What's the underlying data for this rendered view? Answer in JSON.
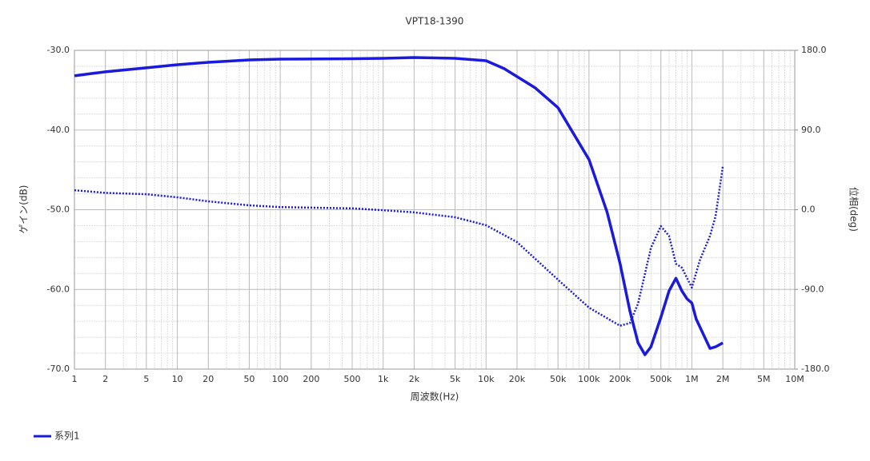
{
  "chart_data": {
    "type": "line",
    "title": "VPT18-1390",
    "xlabel": "周波数(Hz)",
    "ylabel": "ゲイン(dB)",
    "y2label": "位相(deg)",
    "xscale": "log",
    "xlim": [
      1,
      10000000
    ],
    "xticks": [
      1,
      2,
      5,
      10,
      20,
      50,
      100,
      200,
      500,
      {
        "value": 1000,
        "label": "1k"
      },
      {
        "value": 2000,
        "label": "2k"
      },
      {
        "value": 5000,
        "label": "5k"
      },
      {
        "value": 10000,
        "label": "10k"
      },
      {
        "value": 20000,
        "label": "20k"
      },
      {
        "value": 50000,
        "label": "50k"
      },
      {
        "value": 100000,
        "label": "100k"
      },
      {
        "value": 200000,
        "label": "200k"
      },
      {
        "value": 500000,
        "label": "500k"
      },
      {
        "value": 1000000,
        "label": "1M"
      },
      {
        "value": 2000000,
        "label": "2M"
      },
      {
        "value": 5000000,
        "label": "5M"
      },
      {
        "value": 10000000,
        "label": "10M"
      }
    ],
    "ylim": [
      -70,
      -30
    ],
    "yticks": [
      {
        "value": -70,
        "label": "-70.0"
      },
      {
        "value": -60,
        "label": "-60.0"
      },
      {
        "value": -50,
        "label": "-50.0"
      },
      {
        "value": -40,
        "label": "-40.0"
      },
      {
        "value": -30,
        "label": "-30.0"
      }
    ],
    "y2lim": [
      -180,
      180
    ],
    "y2ticks": [
      {
        "value": -180,
        "label": "-180.0"
      },
      {
        "value": -90,
        "label": "-90.0"
      },
      {
        "value": 0,
        "label": "0.0"
      },
      {
        "value": 90,
        "label": "90.0"
      },
      {
        "value": 180,
        "label": "180.0"
      }
    ],
    "grid": true,
    "legend": "bottom-left",
    "series": [
      {
        "name": "系列1",
        "color": "#1a1adf",
        "style": "solid",
        "x": [
          1,
          1.5,
          2,
          5,
          10,
          20,
          50,
          100,
          500,
          1000,
          2000,
          5000,
          10000,
          15000,
          20000,
          30000,
          50000,
          100000,
          150000,
          200000,
          250000,
          300000,
          350000,
          400000,
          500000,
          600000,
          700000,
          800000,
          900000,
          1000000,
          1100000,
          1300000,
          1500000,
          1700000,
          2000000
        ],
        "values": [
          -33.2,
          -32.9,
          -32.7,
          -32.2,
          -31.8,
          -31.5,
          -31.2,
          -31.1,
          -31.05,
          -31.0,
          -30.9,
          -31.0,
          -31.3,
          -32.3,
          -33.3,
          -34.7,
          -37.2,
          -43.7,
          -50.3,
          -56.7,
          -62.7,
          -66.7,
          -68.2,
          -67.2,
          -63.5,
          -60.2,
          -58.6,
          -60.2,
          -61.2,
          -61.7,
          -63.7,
          -65.7,
          -67.4,
          -67.2,
          -66.7
        ]
      },
      {
        "color": "#1a1adf",
        "style": "dotted",
        "axis": "y2",
        "x": [
          1,
          2,
          5,
          10,
          20,
          50,
          100,
          500,
          1000,
          2000,
          5000,
          10000,
          20000,
          50000,
          100000,
          200000,
          250000,
          300000,
          400000,
          500000,
          600000,
          700000,
          800000,
          1000000,
          1200000,
          1500000,
          1700000,
          2000000
        ],
        "values": [
          22,
          19,
          17.5,
          14,
          9.5,
          5,
          3,
          1.5,
          -0.5,
          -3,
          -8.5,
          -17.5,
          -36.5,
          -79,
          -110.5,
          -131,
          -128,
          -106,
          -43,
          -18.5,
          -29.5,
          -61,
          -65.5,
          -88,
          -56.5,
          -29.5,
          -7,
          49
        ]
      }
    ]
  }
}
